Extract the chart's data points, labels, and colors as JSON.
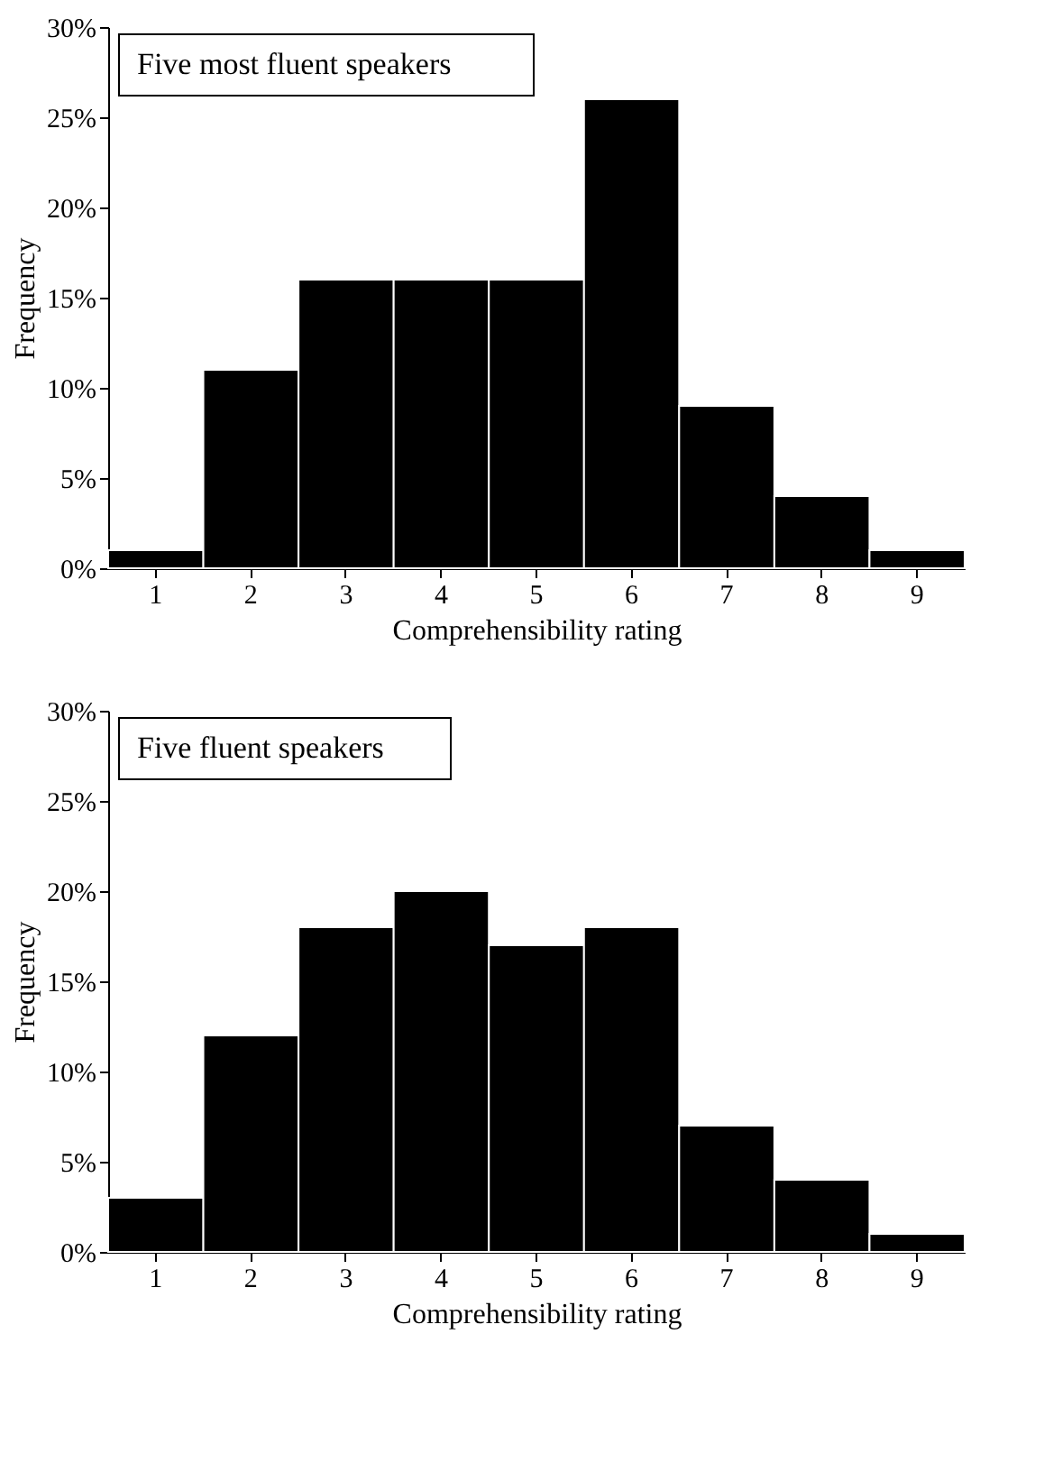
{
  "chart_data": [
    {
      "type": "bar",
      "title": "Five most fluent speakers",
      "xlabel": "Comprehensibility rating",
      "ylabel": "Frequency",
      "categories": [
        "1",
        "2",
        "3",
        "4",
        "5",
        "6",
        "7",
        "8",
        "9"
      ],
      "values": [
        1,
        11,
        16,
        16,
        16,
        26,
        9,
        4,
        1
      ],
      "color": "#000000",
      "ylim": [
        0,
        30
      ],
      "yticks": [
        {
          "value": 0,
          "label": "0%"
        },
        {
          "value": 5,
          "label": "5%"
        },
        {
          "value": 10,
          "label": "10%"
        },
        {
          "value": 15,
          "label": "15%"
        },
        {
          "value": 20,
          "label": "20%"
        },
        {
          "value": 25,
          "label": "25%"
        },
        {
          "value": 30,
          "label": "30%"
        }
      ],
      "grid": false
    },
    {
      "type": "bar",
      "title": "Five fluent speakers",
      "xlabel": "Comprehensibility rating",
      "ylabel": "Frequency",
      "categories": [
        "1",
        "2",
        "3",
        "4",
        "5",
        "6",
        "7",
        "8",
        "9"
      ],
      "values": [
        3,
        12,
        18,
        20,
        17,
        18,
        7,
        4,
        1
      ],
      "color": "#000000",
      "ylim": [
        0,
        30
      ],
      "yticks": [
        {
          "value": 0,
          "label": "0%"
        },
        {
          "value": 5,
          "label": "5%"
        },
        {
          "value": 10,
          "label": "10%"
        },
        {
          "value": 15,
          "label": "15%"
        },
        {
          "value": 20,
          "label": "20%"
        },
        {
          "value": 25,
          "label": "25%"
        },
        {
          "value": 30,
          "label": "30%"
        }
      ],
      "grid": false
    }
  ]
}
